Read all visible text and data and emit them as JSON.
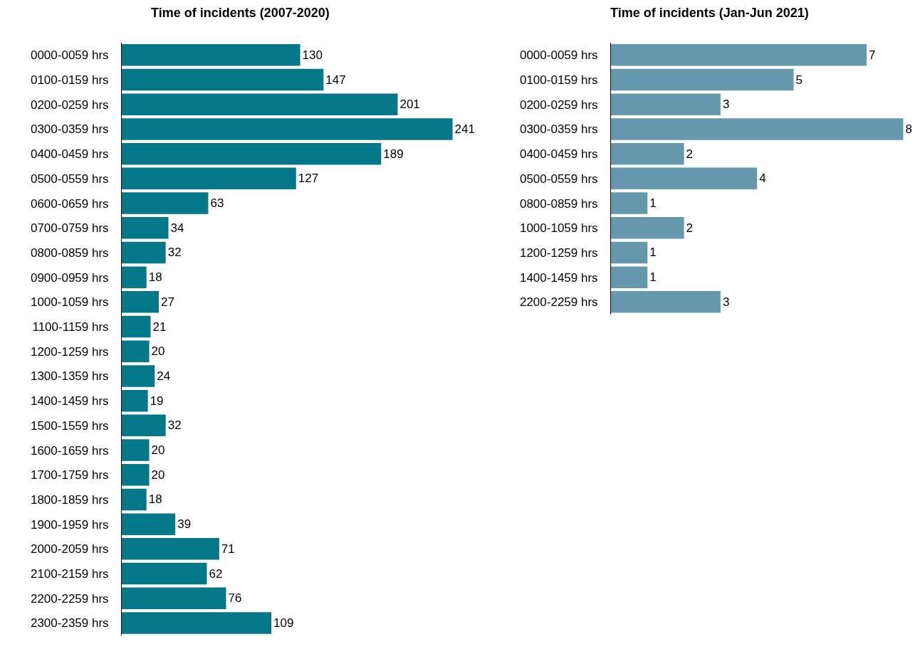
{
  "chart_data": [
    {
      "type": "bar",
      "orientation": "horizontal",
      "title": "Time of incidents (2007-2020)",
      "categories": [
        "0000-0059 hrs",
        "0100-0159 hrs",
        "0200-0259 hrs",
        "0300-0359 hrs",
        "0400-0459 hrs",
        "0500-0559 hrs",
        "0600-0659 hrs",
        "0700-0759 hrs",
        "0800-0859 hrs",
        "0900-0959 hrs",
        "1000-1059 hrs",
        "1100-1159 hrs",
        "1200-1259 hrs",
        "1300-1359 hrs",
        "1400-1459 hrs",
        "1500-1559 hrs",
        "1600-1659 hrs",
        "1700-1759 hrs",
        "1800-1859 hrs",
        "1900-1959 hrs",
        "2000-2059 hrs",
        "2100-2159 hrs",
        "2200-2259 hrs",
        "2300-2359 hrs"
      ],
      "values": [
        130,
        147,
        201,
        241,
        189,
        127,
        63,
        34,
        32,
        18,
        27,
        21,
        20,
        24,
        19,
        32,
        20,
        20,
        18,
        39,
        71,
        62,
        76,
        109
      ],
      "color": "#047889",
      "data_labels": true,
      "tick_labels": "y"
    },
    {
      "type": "bar",
      "orientation": "horizontal",
      "title": "Time of incidents (Jan-Jun 2021)",
      "categories": [
        "0000-0059 hrs",
        "0100-0159 hrs",
        "0200-0259 hrs",
        "0300-0359 hrs",
        "0400-0459 hrs",
        "0500-0559 hrs",
        "0800-0859 hrs",
        "1000-1059 hrs",
        "1200-1259 hrs",
        "1400-1459 hrs",
        "2200-2259 hrs"
      ],
      "values": [
        7,
        5,
        3,
        8,
        2,
        4,
        1,
        2,
        1,
        1,
        3
      ],
      "color": "#6699ae",
      "data_labels": true,
      "tick_labels": "y"
    }
  ]
}
